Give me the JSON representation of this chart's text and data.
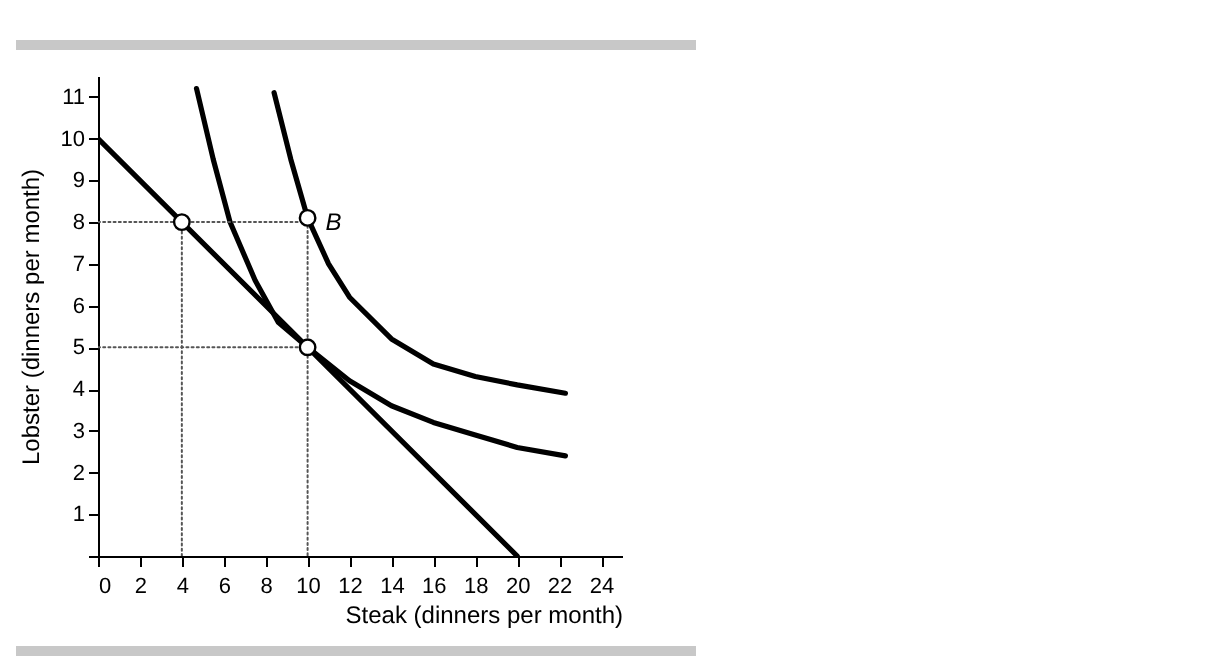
{
  "chart_data": {
    "type": "line",
    "xlabel": "Steak (dinners per month)",
    "ylabel": "Lobster (dinners per month)",
    "xlim": [
      0,
      25
    ],
    "ylim": [
      0,
      11.5
    ],
    "xticks": [
      0,
      2,
      4,
      6,
      8,
      10,
      12,
      14,
      16,
      18,
      20,
      22,
      24
    ],
    "yticks": [
      {
        "value": 0,
        "label": null
      },
      1,
      2,
      3,
      4,
      5,
      6,
      7,
      8,
      9,
      10,
      11
    ],
    "grid": false,
    "legend": false,
    "annotations": [
      {
        "text": "B",
        "x": 10,
        "y": 8
      }
    ],
    "series": [
      {
        "color": "#000000",
        "line_style": "solid",
        "x": [
          0,
          20
        ],
        "values": [
          10,
          0
        ]
      },
      {
        "color": "#000000",
        "line_style": "solid",
        "x": [
          4.7,
          5.5,
          6.3,
          7.5,
          8.6,
          10,
          12,
          14,
          16,
          18,
          20,
          22.3
        ],
        "values": [
          11.2,
          9.5,
          8,
          6.6,
          5.6,
          5,
          4.2,
          3.6,
          3.2,
          2.9,
          2.6,
          2.4
        ]
      },
      {
        "color": "#000000",
        "line_style": "solid",
        "x": [
          8.4,
          9.2,
          10,
          11,
          12,
          14,
          16,
          18,
          20,
          22.3
        ],
        "values": [
          11.1,
          9.5,
          8.1,
          7,
          6.2,
          5.2,
          4.6,
          4.3,
          4.1,
          3.9
        ]
      },
      {
        "color": "#555555",
        "line_style": "dotted",
        "x": [
          0,
          10,
          10
        ],
        "values": [
          8,
          8,
          0
        ]
      },
      {
        "color": "#555555",
        "line_style": "dotted",
        "x": [
          4,
          4
        ],
        "values": [
          0,
          8
        ]
      },
      {
        "color": "#555555",
        "line_style": "dotted",
        "x": [
          0,
          10
        ],
        "values": [
          5,
          5
        ]
      },
      {
        "type": "scatter",
        "color": "#000000",
        "marker": "circle",
        "x": [
          4,
          10,
          10
        ],
        "values": [
          8,
          5,
          8.1
        ]
      }
    ]
  }
}
